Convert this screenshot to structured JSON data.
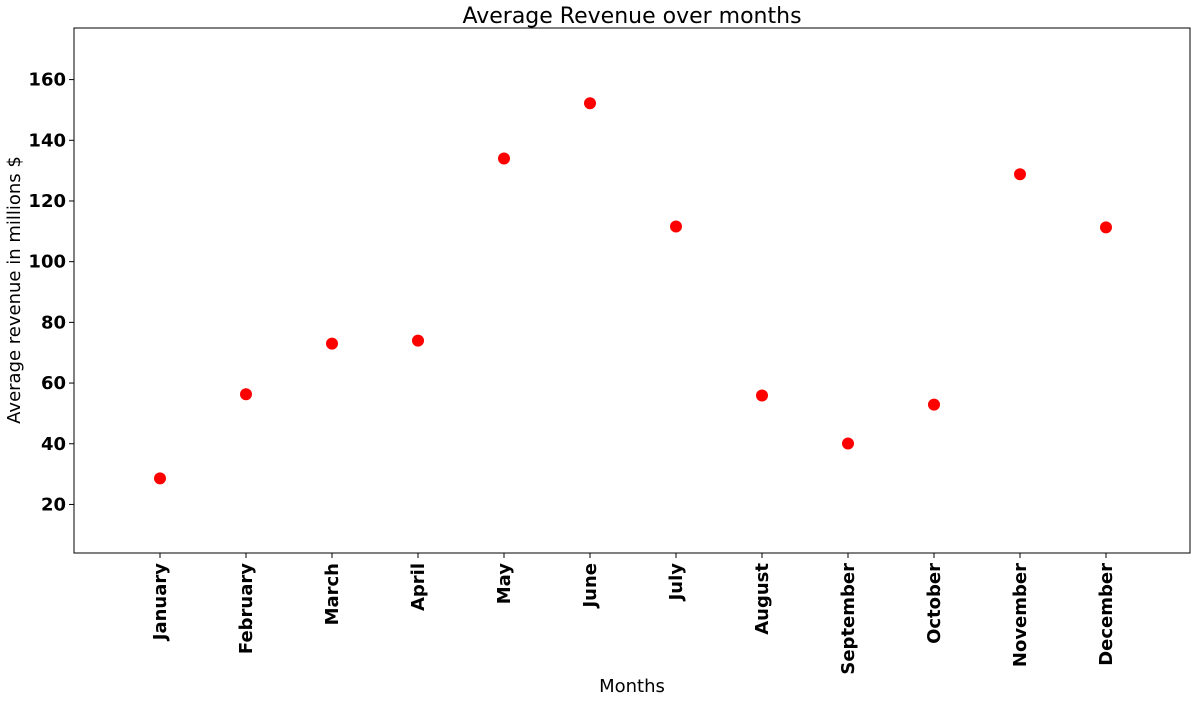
{
  "chart_data": {
    "type": "scatter",
    "title": "Average Revenue over months",
    "xlabel": "Months",
    "ylabel": "Average revenue in millions $",
    "categories": [
      "January",
      "February",
      "March",
      "April",
      "May",
      "June",
      "July",
      "August",
      "September",
      "October",
      "November",
      "December"
    ],
    "values": [
      28.6,
      56.3,
      73.0,
      74.0,
      134.0,
      152.2,
      111.6,
      55.9,
      40.1,
      52.9,
      128.8,
      111.3
    ],
    "ylim": [
      4,
      177
    ],
    "yticks": [
      20,
      40,
      60,
      80,
      100,
      120,
      140,
      160
    ],
    "grid": false,
    "marker_color": "#ff0000"
  }
}
